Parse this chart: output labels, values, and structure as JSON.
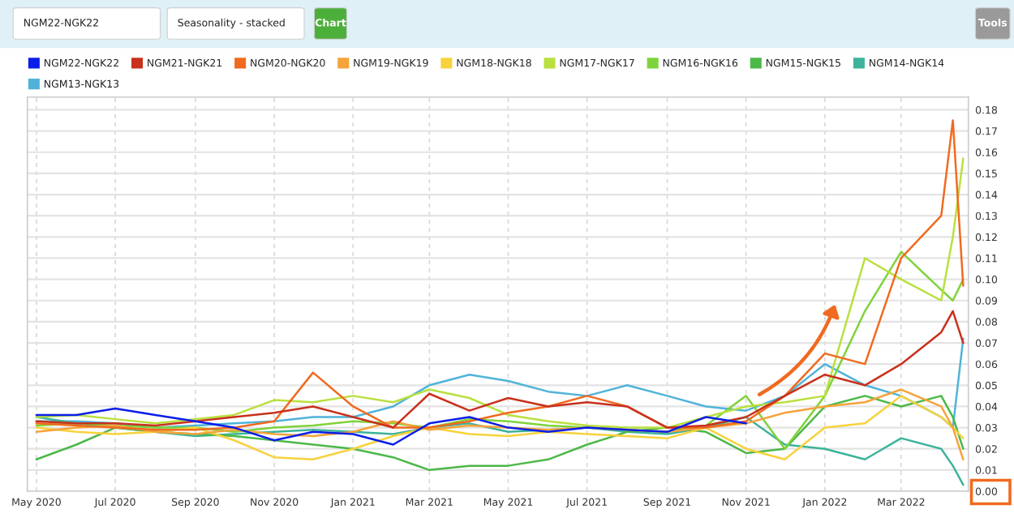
{
  "chart_data": {
    "type": "line",
    "annotations": [
      "NGM22-NGK22",
      "Seasonality - stacked",
      "Chart",
      "Tools"
    ],
    "x": [
      "2020-05-01",
      "2020-06-01",
      "2020-07-01",
      "2020-08-01",
      "2020-09-01",
      "2020-10-01",
      "2020-11-01",
      "2020-12-01",
      "2021-01-01",
      "2021-02-01",
      "2021-03-01",
      "2021-04-01",
      "2021-05-01",
      "2021-06-01",
      "2021-07-01",
      "2021-08-01",
      "2021-09-01",
      "2021-10-01",
      "2021-11-01",
      "2021-12-01",
      "2022-01-01",
      "2022-02-01",
      "2022-03-01",
      "2022-04-01",
      "2022-04-10",
      "2022-04-18"
    ],
    "series": [
      {
        "name": "NGM22-NGK22",
        "color": "#0b1ee8",
        "x": [
          "2020-05-01",
          "2020-06-01",
          "2020-07-01",
          "2020-08-01",
          "2020-09-01",
          "2020-10-01",
          "2020-11-01",
          "2020-12-01",
          "2021-01-01",
          "2021-02-01",
          "2021-03-01",
          "2021-04-01",
          "2021-05-01",
          "2021-06-01",
          "2021-07-01",
          "2021-08-01",
          "2021-09-01",
          "2021-10-01",
          "2021-11-01"
        ],
        "values": [
          0.036,
          0.036,
          0.039,
          0.036,
          0.033,
          0.03,
          0.024,
          0.028,
          0.027,
          0.022,
          0.032,
          0.035,
          0.03,
          0.028,
          0.03,
          0.029,
          0.028,
          0.035,
          0.032
        ]
      },
      {
        "name": "NGM21-NGK21",
        "color": "#c8311c",
        "values": [
          0.033,
          0.032,
          0.032,
          0.031,
          0.033,
          0.035,
          0.037,
          0.04,
          0.035,
          0.03,
          0.046,
          0.038,
          0.044,
          0.04,
          0.042,
          0.04,
          0.03,
          0.031,
          0.035,
          0.045,
          0.055,
          0.05,
          0.06,
          0.075,
          0.085,
          0.07
        ]
      },
      {
        "name": "NGM20-NGK20",
        "color": "#f06a1f",
        "values": [
          0.032,
          0.031,
          0.03,
          0.029,
          0.029,
          0.03,
          0.033,
          0.056,
          0.04,
          0.03,
          0.03,
          0.033,
          0.037,
          0.04,
          0.045,
          0.04,
          0.03,
          0.03,
          0.033,
          0.045,
          0.065,
          0.06,
          0.11,
          0.13,
          0.175,
          0.097
        ]
      },
      {
        "name": "NGM19-NGK19",
        "color": "#f5a33a",
        "values": [
          0.028,
          0.03,
          0.031,
          0.028,
          0.027,
          0.029,
          0.027,
          0.026,
          0.028,
          0.033,
          0.029,
          0.031,
          0.03,
          0.029,
          0.03,
          0.029,
          0.028,
          0.03,
          0.032,
          0.037,
          0.04,
          0.042,
          0.048,
          0.04,
          0.03,
          0.015
        ]
      },
      {
        "name": "NGM18-NGK18",
        "color": "#f7d23c",
        "values": [
          0.03,
          0.028,
          0.027,
          0.028,
          0.03,
          0.024,
          0.016,
          0.015,
          0.02,
          0.026,
          0.03,
          0.027,
          0.026,
          0.028,
          0.027,
          0.026,
          0.025,
          0.03,
          0.02,
          0.015,
          0.03,
          0.032,
          0.045,
          0.035,
          0.03,
          0.025
        ]
      },
      {
        "name": "NGM17-NGK17",
        "color": "#b9e03e",
        "values": [
          0.035,
          0.036,
          0.034,
          0.032,
          0.034,
          0.036,
          0.043,
          0.042,
          0.045,
          0.042,
          0.048,
          0.044,
          0.036,
          0.033,
          0.031,
          0.03,
          0.03,
          0.035,
          0.04,
          0.042,
          0.045,
          0.11,
          0.1,
          0.09,
          0.12,
          0.157
        ]
      },
      {
        "name": "NGM16-NGK16",
        "color": "#7ed33a",
        "values": [
          0.031,
          0.032,
          0.031,
          0.03,
          0.03,
          0.028,
          0.03,
          0.031,
          0.033,
          0.032,
          0.03,
          0.034,
          0.033,
          0.031,
          0.03,
          0.029,
          0.028,
          0.031,
          0.045,
          0.02,
          0.045,
          0.085,
          0.113,
          0.095,
          0.09,
          0.1
        ]
      },
      {
        "name": "NGM15-NGK15",
        "color": "#4cb848",
        "values": [
          0.015,
          0.022,
          0.03,
          0.028,
          0.027,
          0.026,
          0.024,
          0.022,
          0.02,
          0.016,
          0.01,
          0.012,
          0.012,
          0.015,
          0.022,
          0.028,
          0.03,
          0.028,
          0.018,
          0.02,
          0.04,
          0.045,
          0.04,
          0.045,
          0.035,
          0.02
        ]
      },
      {
        "name": "NGM14-NGK14",
        "color": "#3db39b",
        "values": [
          0.035,
          0.032,
          0.03,
          0.028,
          0.026,
          0.027,
          0.028,
          0.029,
          0.028,
          0.027,
          0.03,
          0.032,
          0.028,
          0.029,
          0.03,
          0.028,
          0.027,
          0.03,
          0.035,
          0.022,
          0.02,
          0.015,
          0.025,
          0.02,
          0.012,
          0.003
        ]
      },
      {
        "name": "NGM13-NGK13",
        "color": "#4fb3d9",
        "values": [
          0.033,
          0.033,
          0.032,
          0.03,
          0.031,
          0.032,
          0.033,
          0.035,
          0.035,
          0.04,
          0.05,
          0.055,
          0.052,
          0.047,
          0.045,
          0.05,
          0.045,
          0.04,
          0.038,
          0.045,
          0.06,
          0.05,
          0.045,
          0.035,
          0.03,
          0.072
        ]
      }
    ],
    "xlim": [
      "2020-04-24",
      "2022-04-22"
    ],
    "xticks": [
      {
        "value": "2020-05-01",
        "label": "May 2020"
      },
      {
        "value": "2020-07-01",
        "label": "Jul 2020"
      },
      {
        "value": "2020-09-01",
        "label": "Sep 2020"
      },
      {
        "value": "2020-11-01",
        "label": "Nov 2020"
      },
      {
        "value": "2021-01-01",
        "label": "Jan 2021"
      },
      {
        "value": "2021-03-01",
        "label": "Mar 2021"
      },
      {
        "value": "2021-05-01",
        "label": "May 2021"
      },
      {
        "value": "2021-07-01",
        "label": "Jul 2021"
      },
      {
        "value": "2021-09-01",
        "label": "Sep 2021"
      },
      {
        "value": "2021-11-01",
        "label": "Nov 2021"
      },
      {
        "value": "2022-01-01",
        "label": "Jan 2022"
      },
      {
        "value": "2022-03-01",
        "label": "Mar 2022"
      }
    ],
    "ylim": [
      0,
      0.186
    ],
    "yticks": [
      {
        "value": 0,
        "label": "0.00"
      },
      {
        "value": 0.01,
        "label": "0.01"
      },
      {
        "value": 0.02,
        "label": "0.02"
      },
      {
        "value": 0.03,
        "label": "0.03"
      },
      {
        "value": 0.04,
        "label": "0.04"
      },
      {
        "value": 0.05,
        "label": "0.05"
      },
      {
        "value": 0.06,
        "label": "0.06"
      },
      {
        "value": 0.07,
        "label": "0.07"
      },
      {
        "value": 0.08,
        "label": "0.08"
      },
      {
        "value": 0.09,
        "label": "0.09"
      },
      {
        "value": 0.1,
        "label": "0.10"
      },
      {
        "value": 0.11,
        "label": "0.11"
      },
      {
        "value": 0.12,
        "label": "0.12"
      },
      {
        "value": 0.13,
        "label": "0.13"
      },
      {
        "value": 0.14,
        "label": "0.14"
      },
      {
        "value": 0.15,
        "label": "0.15"
      },
      {
        "value": 0.16,
        "label": "0.16"
      },
      {
        "value": 0.17,
        "label": "0.17"
      },
      {
        "value": 0.18,
        "label": "0.18"
      }
    ],
    "grid": true,
    "legend": "top",
    "marker": "none",
    "line_style": "solid"
  }
}
